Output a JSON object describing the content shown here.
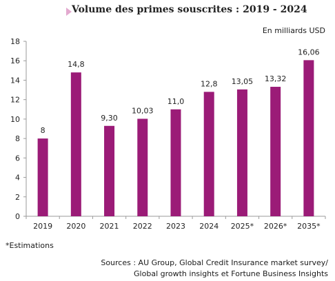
{
  "chart_data": {
    "type": "bar",
    "title": "Volume des primes souscrites : 2019 - 2024",
    "unit": "En milliards USD",
    "categories": [
      "2019",
      "2020",
      "2021",
      "2022",
      "2023",
      "2024",
      "2025*",
      "2026*",
      "2035*"
    ],
    "values": [
      8,
      14.8,
      9.3,
      10.03,
      11.0,
      12.8,
      13.05,
      13.32,
      16.06
    ],
    "data_labels": [
      "8",
      "14,8",
      "9,30",
      "10,03",
      "11,0",
      "12,8",
      "13,05",
      "13,32",
      "16,06"
    ],
    "y_ticks": [
      "0",
      "2",
      "4",
      "6",
      "8",
      "10",
      "12",
      "14",
      "16",
      "18"
    ],
    "ylim": [
      0,
      18
    ],
    "grid": false,
    "bar_color": "#9b1b77"
  },
  "footer": {
    "note": "*Estimations",
    "sources_line1": "Sources : AU Group, Global Credit Insurance market survey/",
    "sources_line2": "Global growth insights et Fortune Business Insights"
  }
}
